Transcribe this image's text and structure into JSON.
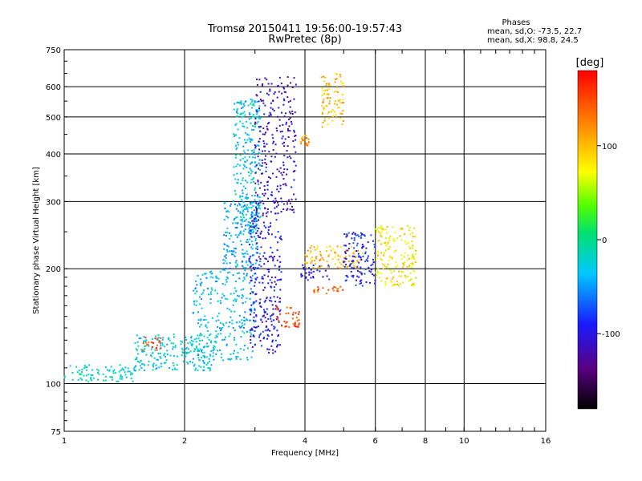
{
  "header": {
    "title_line1": "Tromsø 20150411 19:56:00-19:57:43",
    "title_line2": "RwPretec (8p)"
  },
  "stats": {
    "heading": "Phases",
    "line1": "mean, sd,O: -73.5, 22.7",
    "line2": "mean, sd,X:  98.8, 24.5"
  },
  "colorbar": {
    "label": "[deg]",
    "ticks": [
      "100",
      "0",
      "-100"
    ],
    "tick_values": [
      100,
      0,
      -100
    ],
    "range": [
      -180,
      180
    ],
    "colors": [
      "#000000",
      "#5a0080",
      "#1a1aff",
      "#00c8ff",
      "#00e070",
      "#50ff00",
      "#ffff00",
      "#ff8000",
      "#ff0000"
    ]
  },
  "chart_data": {
    "type": "scatter",
    "xlabel": "Frequency [MHz]",
    "ylabel": "Stationary phase Virtual Height [km]",
    "xscale": "log",
    "yscale": "log",
    "xlim": [
      1,
      16
    ],
    "ylim": [
      75,
      750
    ],
    "xticks": [
      1,
      2,
      4,
      6,
      8,
      10,
      16
    ],
    "xtick_labels": [
      "1",
      "2",
      "4",
      "6",
      "8",
      "10",
      "16"
    ],
    "yticks": [
      75,
      100,
      200,
      300,
      400,
      500,
      600,
      750
    ],
    "ytick_labels": [
      "75",
      "100",
      "200",
      "300",
      "400",
      "500",
      "600",
      "750"
    ],
    "grid": true,
    "color_scale": "phase [deg]",
    "clusters": [
      {
        "f_range": [
          1.0,
          1.5
        ],
        "h_range": [
          101,
          112
        ],
        "phase": -20
      },
      {
        "f_range": [
          1.5,
          2.4
        ],
        "h_range": [
          108,
          135
        ],
        "phase": -25
      },
      {
        "f_range": [
          1.55,
          1.75
        ],
        "h_range": [
          122,
          132
        ],
        "phase": 150
      },
      {
        "f_range": [
          2.1,
          3.0
        ],
        "h_range": [
          115,
          200
        ],
        "phase": -35
      },
      {
        "f_range": [
          2.5,
          3.1
        ],
        "h_range": [
          200,
          300
        ],
        "phase": -45
      },
      {
        "f_range": [
          2.65,
          3.1
        ],
        "h_range": [
          250,
          560
        ],
        "phase": -30
      },
      {
        "f_range": [
          2.9,
          3.5
        ],
        "h_range": [
          120,
          280
        ],
        "phase": -100
      },
      {
        "f_range": [
          3.0,
          3.8
        ],
        "h_range": [
          280,
          640
        ],
        "phase": -110
      },
      {
        "f_range": [
          3.4,
          3.9
        ],
        "h_range": [
          140,
          160
        ],
        "phase": 150
      },
      {
        "f_range": [
          3.9,
          4.6
        ],
        "h_range": [
          185,
          205
        ],
        "phase": -100
      },
      {
        "f_range": [
          4.0,
          5.6
        ],
        "h_range": [
          200,
          230
        ],
        "phase": 100
      },
      {
        "f_range": [
          4.2,
          5.0
        ],
        "h_range": [
          172,
          180
        ],
        "phase": 140
      },
      {
        "f_range": [
          3.9,
          4.1
        ],
        "h_range": [
          420,
          450
        ],
        "phase": 120
      },
      {
        "f_range": [
          4.4,
          5.0
        ],
        "h_range": [
          470,
          650
        ],
        "phase": 100
      },
      {
        "f_range": [
          5.0,
          6.0
        ],
        "h_range": [
          180,
          250
        ],
        "phase": -90
      },
      {
        "f_range": [
          6.0,
          7.6
        ],
        "h_range": [
          180,
          260
        ],
        "phase": 80
      }
    ]
  }
}
